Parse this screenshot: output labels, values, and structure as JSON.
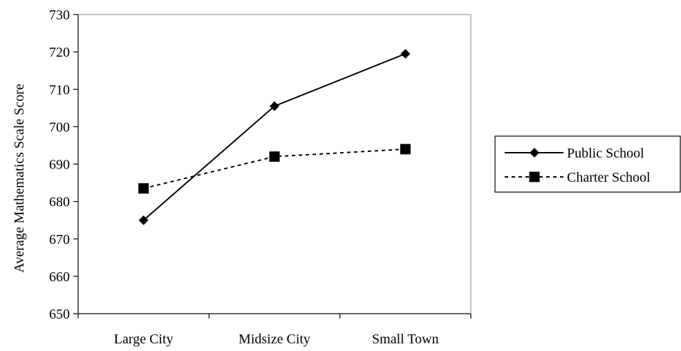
{
  "chart_data": {
    "type": "line",
    "title": "",
    "xlabel": "",
    "ylabel": "Average Mathematics Scale Score",
    "categories": [
      "Large City",
      "Midsize City",
      "Small Town"
    ],
    "ylim": [
      650,
      730
    ],
    "yticks": [
      650,
      660,
      670,
      680,
      690,
      700,
      710,
      720,
      730
    ],
    "grid": false,
    "legend_position": "right",
    "series": [
      {
        "name": "Public School",
        "values": [
          675,
          705.5,
          719.5
        ],
        "marker": "diamond",
        "line_style": "solid",
        "color": "#000000"
      },
      {
        "name": "Charter School",
        "values": [
          683.5,
          692,
          694
        ],
        "marker": "square",
        "line_style": "dashed",
        "color": "#000000"
      }
    ]
  }
}
